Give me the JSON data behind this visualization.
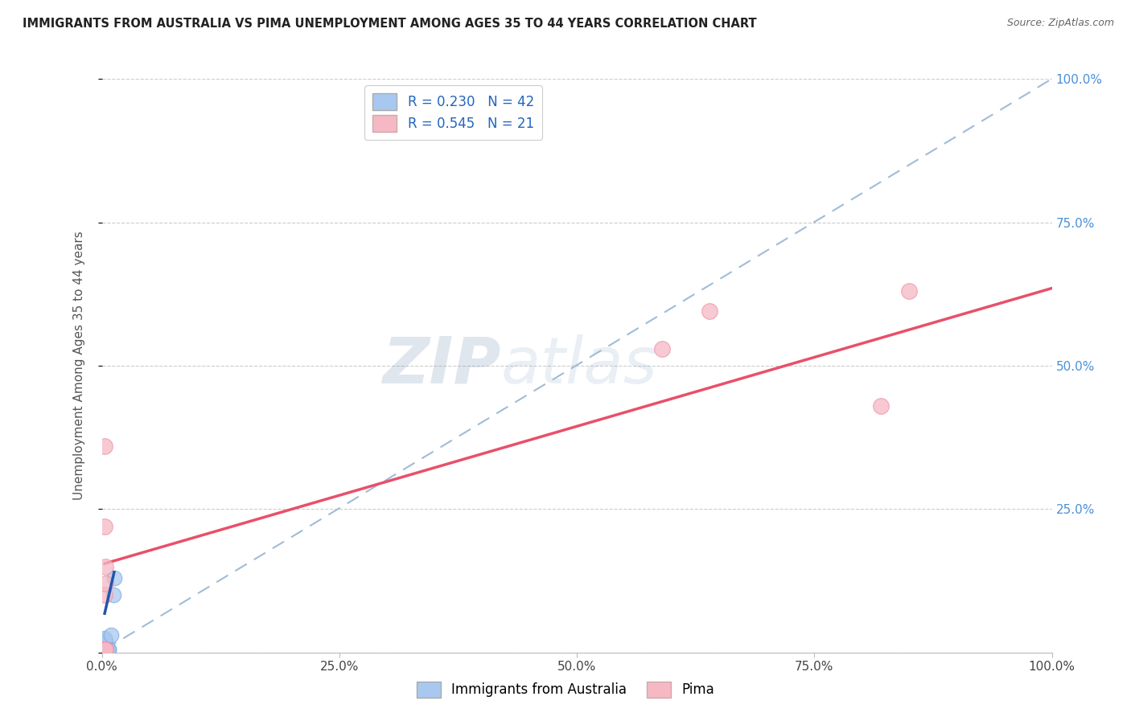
{
  "title": "IMMIGRANTS FROM AUSTRALIA VS PIMA UNEMPLOYMENT AMONG AGES 35 TO 44 YEARS CORRELATION CHART",
  "source": "Source: ZipAtlas.com",
  "ylabel": "Unemployment Among Ages 35 to 44 years",
  "legend_bottom": [
    "Immigrants from Australia",
    "Pima"
  ],
  "xlim": [
    0,
    1.0
  ],
  "ylim": [
    0,
    1.0
  ],
  "xtick_labels": [
    "0.0%",
    "25.0%",
    "50.0%",
    "75.0%",
    "100.0%"
  ],
  "xtick_vals": [
    0.0,
    0.25,
    0.5,
    0.75,
    1.0
  ],
  "ytick_labels": [
    "",
    "",
    "",
    "",
    ""
  ],
  "ytick_vals": [
    0.0,
    0.25,
    0.5,
    0.75,
    1.0
  ],
  "right_ytick_labels": [
    "100.0%",
    "75.0%",
    "50.0%",
    "25.0%",
    ""
  ],
  "right_ytick_vals": [
    1.0,
    0.75,
    0.5,
    0.25,
    0.0
  ],
  "R_blue": 0.23,
  "N_blue": 42,
  "R_pink": 0.545,
  "N_pink": 21,
  "blue_dot_color": "#a8c8f0",
  "pink_dot_color": "#f5b8c4",
  "blue_dot_edge": "#7aaae0",
  "pink_dot_edge": "#f090a0",
  "blue_trend_color": "#2255aa",
  "dashed_trend_color": "#a0bcd8",
  "pink_trend_color": "#e8506a",
  "watermark_color": "#c8d8e8",
  "blue_scatter_x": [
    0.003,
    0.004,
    0.003,
    0.005,
    0.003,
    0.002,
    0.004,
    0.003,
    0.002,
    0.003,
    0.004,
    0.003,
    0.003,
    0.004,
    0.003,
    0.003,
    0.004,
    0.003,
    0.002,
    0.003,
    0.003,
    0.004,
    0.003,
    0.002,
    0.003,
    0.004,
    0.003,
    0.002,
    0.003,
    0.003,
    0.004,
    0.003,
    0.004,
    0.004,
    0.005,
    0.006,
    0.006,
    0.007,
    0.007,
    0.01,
    0.012,
    0.013
  ],
  "blue_scatter_y": [
    0.005,
    0.005,
    0.008,
    0.005,
    0.01,
    0.005,
    0.012,
    0.015,
    0.008,
    0.018,
    0.02,
    0.022,
    0.025,
    0.005,
    0.005,
    0.005,
    0.005,
    0.005,
    0.005,
    0.005,
    0.005,
    0.005,
    0.005,
    0.005,
    0.005,
    0.005,
    0.005,
    0.005,
    0.005,
    0.005,
    0.005,
    0.005,
    0.005,
    0.005,
    0.005,
    0.005,
    0.005,
    0.005,
    0.005,
    0.03,
    0.1,
    0.13
  ],
  "pink_scatter_x": [
    0.003,
    0.003,
    0.003,
    0.004,
    0.004,
    0.003,
    0.003,
    0.003,
    0.004,
    0.003,
    0.003,
    0.004,
    0.003,
    0.003,
    0.003,
    0.004,
    0.003,
    0.85,
    0.82,
    0.64,
    0.59
  ],
  "pink_scatter_y": [
    0.005,
    0.36,
    0.1,
    0.12,
    0.15,
    0.005,
    0.005,
    0.005,
    0.005,
    0.005,
    0.005,
    0.005,
    0.005,
    0.005,
    0.005,
    0.005,
    0.22,
    0.63,
    0.43,
    0.595,
    0.53
  ],
  "blue_trend_x": [
    0.003,
    0.013
  ],
  "blue_trend_y": [
    0.068,
    0.14
  ],
  "dashed_trend_x": [
    0.003,
    1.0
  ],
  "dashed_trend_y": [
    0.005,
    1.0
  ],
  "pink_trend_x": [
    0.003,
    1.0
  ],
  "pink_trend_y": [
    0.155,
    0.635
  ]
}
